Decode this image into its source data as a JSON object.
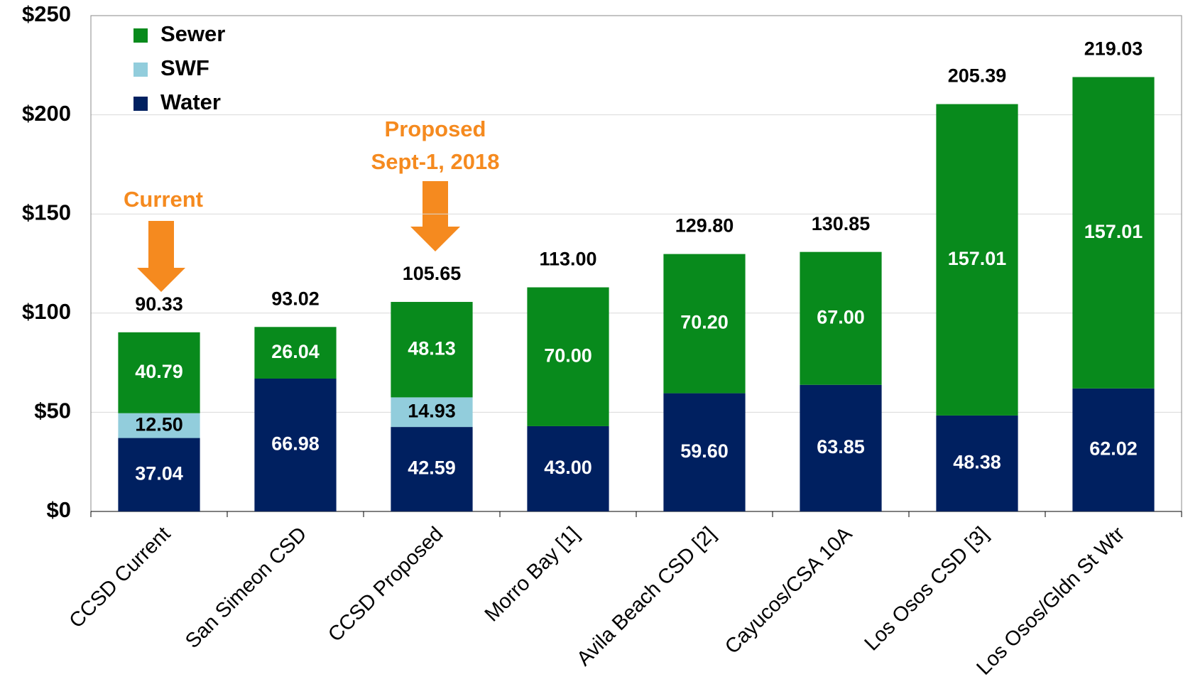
{
  "chart_data": {
    "type": "bar",
    "stacked": true,
    "categories": [
      "CCSD Current",
      "San Simeon CSD",
      "CCSD Proposed",
      "Morro Bay [1]",
      "Avila Beach CSD [2]",
      "Cayucos/CSA 10A",
      "Los Osos CSD [3]",
      "Los Osos/Gldn St Wtr"
    ],
    "series": [
      {
        "name": "Water",
        "color": "#002060",
        "values": [
          37.04,
          66.98,
          42.59,
          43.0,
          59.6,
          63.85,
          48.38,
          62.02
        ],
        "value_labels": [
          "37.04",
          "66.98",
          "42.59",
          "43.00",
          "59.60",
          "63.85",
          "48.38",
          "62.02"
        ]
      },
      {
        "name": "SWF",
        "color": "#92cddc",
        "values": [
          12.5,
          null,
          14.93,
          null,
          null,
          null,
          null,
          null
        ],
        "value_labels": [
          "12.50",
          null,
          "14.93",
          null,
          null,
          null,
          null,
          null
        ]
      },
      {
        "name": "Sewer",
        "color": "#088a1c",
        "values": [
          40.79,
          26.04,
          48.13,
          70.0,
          70.2,
          67.0,
          157.01,
          157.01
        ],
        "value_labels": [
          "40.79",
          "26.04",
          "48.13",
          "70.00",
          "70.20",
          "67.00",
          "157.01",
          "157.01"
        ]
      }
    ],
    "totals": [
      90.33,
      93.02,
      105.65,
      113.0,
      129.8,
      130.85,
      205.39,
      219.03
    ],
    "total_labels": [
      "90.33",
      "93.02",
      "105.65",
      "113.00",
      "129.80",
      "130.85",
      "205.39",
      "219.03"
    ],
    "annotations": [
      "Current",
      "Proposed",
      "Sept-1, 2018"
    ],
    "ylim": [
      0,
      250
    ],
    "yticks": [
      {
        "value": 0,
        "label": "$0"
      },
      {
        "value": 50,
        "label": "$50"
      },
      {
        "value": 100,
        "label": "$100"
      },
      {
        "value": 150,
        "label": "$150"
      },
      {
        "value": 200,
        "label": "$200"
      },
      {
        "value": 250,
        "label": "$250"
      }
    ],
    "grid": true,
    "legend": "upper left"
  }
}
